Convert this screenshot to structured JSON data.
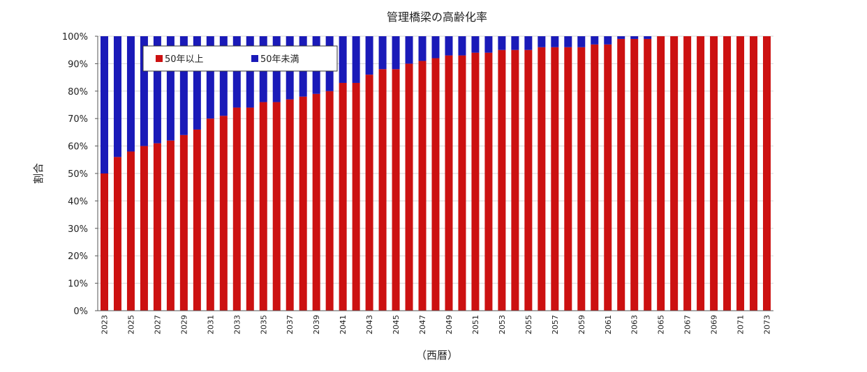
{
  "chart_data": {
    "type": "bar",
    "stacked": true,
    "title": "管理橋梁の高齢化率",
    "xlabel": "（西暦）",
    "ylabel": "割合",
    "ylim": [
      0,
      100
    ],
    "yticks": [
      "0%",
      "10%",
      "20%",
      "30%",
      "40%",
      "50%",
      "60%",
      "70%",
      "80%",
      "90%",
      "100%"
    ],
    "xtick_labels": [
      "2023",
      "2025",
      "2027",
      "2029",
      "2031",
      "2033",
      "2035",
      "2037",
      "2039",
      "2041",
      "2043",
      "2045",
      "2047",
      "2049",
      "2051",
      "2053",
      "2055",
      "2057",
      "2059",
      "2061",
      "2063",
      "2065",
      "2067",
      "2069",
      "2071",
      "2073"
    ],
    "grid": true,
    "legend_position": "top-left",
    "categories": [
      2023,
      2024,
      2025,
      2026,
      2027,
      2028,
      2029,
      2030,
      2031,
      2032,
      2033,
      2034,
      2035,
      2036,
      2037,
      2038,
      2039,
      2040,
      2041,
      2042,
      2043,
      2044,
      2045,
      2046,
      2047,
      2048,
      2049,
      2050,
      2051,
      2052,
      2053,
      2054,
      2055,
      2056,
      2057,
      2058,
      2059,
      2060,
      2061,
      2062,
      2063,
      2064,
      2065,
      2066,
      2067,
      2068,
      2069,
      2070,
      2071,
      2072,
      2073
    ],
    "series": [
      {
        "name": "50年以上",
        "color": "#cc1111",
        "values": [
          50,
          56,
          58,
          60,
          61,
          62,
          64,
          66,
          70,
          71,
          74,
          74,
          76,
          76,
          77,
          78,
          79,
          80,
          83,
          83,
          86,
          88,
          88,
          90,
          91,
          92,
          93,
          93,
          94,
          94,
          95,
          95,
          95,
          96,
          96,
          96,
          96,
          97,
          97,
          99,
          99,
          99,
          100,
          100,
          100,
          100,
          100,
          100,
          100,
          100,
          100
        ]
      },
      {
        "name": "50年未満",
        "color": "#1a1ab8",
        "values": [
          50,
          44,
          42,
          40,
          39,
          38,
          36,
          34,
          30,
          29,
          26,
          26,
          24,
          24,
          23,
          22,
          21,
          20,
          17,
          17,
          14,
          12,
          12,
          10,
          9,
          8,
          7,
          7,
          6,
          6,
          5,
          5,
          5,
          4,
          4,
          4,
          4,
          3,
          3,
          1,
          1,
          1,
          0,
          0,
          0,
          0,
          0,
          0,
          0,
          0,
          0
        ]
      }
    ]
  }
}
